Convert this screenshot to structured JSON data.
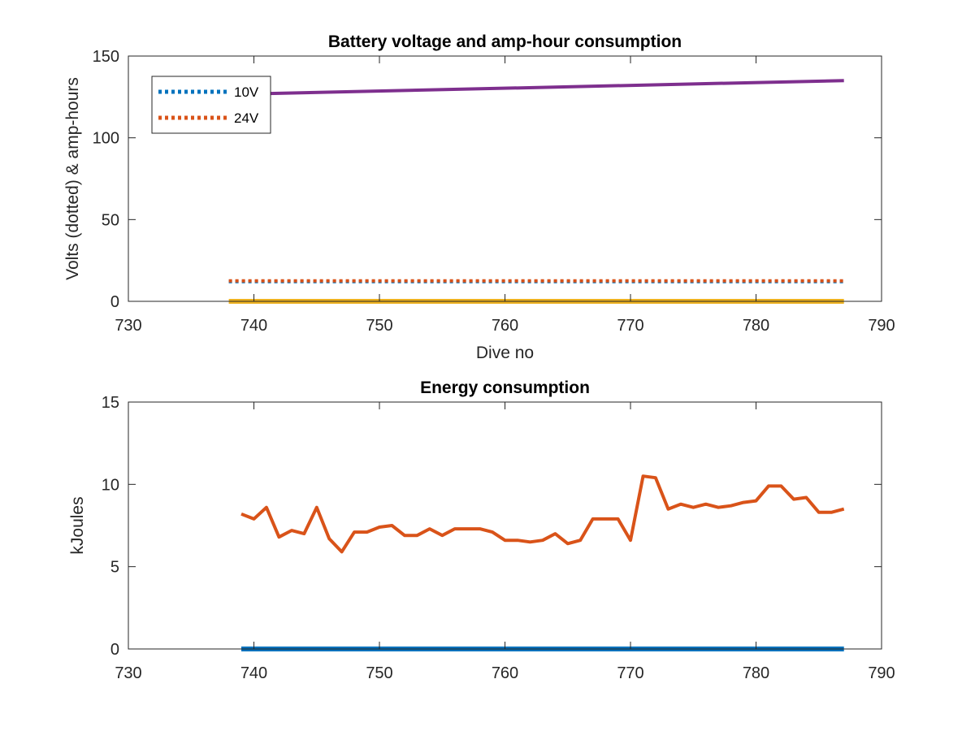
{
  "chart_data": [
    {
      "type": "line",
      "title": "Battery voltage and amp-hour consumption",
      "xlabel": "Dive no",
      "ylabel": "Volts (dotted) & amp-hours",
      "xlim": [
        730,
        790
      ],
      "ylim": [
        0,
        150
      ],
      "xticks": [
        "730",
        "740",
        "750",
        "760",
        "770",
        "780",
        "790"
      ],
      "yticks": [
        "0",
        "50",
        "100",
        "150"
      ],
      "legend": {
        "placement": "top-left",
        "entries": [
          "10V",
          "24V"
        ]
      },
      "grid": false,
      "series": [
        {
          "name": "10V",
          "style": "dotted",
          "color": "#0072BD",
          "x": [
            738,
            787
          ],
          "y": [
            12,
            12
          ]
        },
        {
          "name": "24V",
          "style": "dotted",
          "color": "#D95319",
          "x": [
            738,
            787
          ],
          "y": [
            12.5,
            12.5
          ]
        },
        {
          "style": "solid",
          "color": "#EDB120",
          "x": [
            738,
            787
          ],
          "y": [
            0,
            0
          ]
        },
        {
          "style": "solid",
          "color": "#7E2F8E",
          "x": [
            738,
            787
          ],
          "y": [
            126.5,
            135
          ]
        }
      ]
    },
    {
      "type": "line",
      "title": "Energy consumption",
      "xlabel": "",
      "ylabel": "kJoules",
      "xlim": [
        730,
        790
      ],
      "ylim": [
        0,
        15
      ],
      "xticks": [
        "730",
        "740",
        "750",
        "760",
        "770",
        "780",
        "790"
      ],
      "yticks": [
        "0",
        "5",
        "10",
        "15"
      ],
      "grid": false,
      "series": [
        {
          "style": "solid",
          "color": "#D95319",
          "x": [
            739,
            740,
            741,
            742,
            743,
            744,
            745,
            746,
            747,
            748,
            749,
            750,
            751,
            752,
            753,
            754,
            755,
            756,
            757,
            758,
            759,
            760,
            761,
            762,
            763,
            764,
            765,
            766,
            767,
            768,
            769,
            770,
            771,
            772,
            773,
            774,
            775,
            776,
            777,
            778,
            779,
            780,
            781,
            782,
            783,
            784,
            785,
            786,
            787
          ],
          "y": [
            8.2,
            7.9,
            8.6,
            6.8,
            7.2,
            7.0,
            8.6,
            6.7,
            5.9,
            7.1,
            7.1,
            7.4,
            7.5,
            6.9,
            6.9,
            7.3,
            6.9,
            7.3,
            7.3,
            7.3,
            7.1,
            6.6,
            6.6,
            6.5,
            6.6,
            7.0,
            6.4,
            6.6,
            7.9,
            7.9,
            7.9,
            6.6,
            10.5,
            10.4,
            8.5,
            8.8,
            8.6,
            8.8,
            8.6,
            8.7,
            8.9,
            9.0,
            9.9,
            9.9,
            9.1,
            9.2,
            8.3,
            8.3,
            8.5
          ]
        },
        {
          "style": "solid",
          "color": "#0072BD",
          "x": [
            739,
            787
          ],
          "y": [
            0,
            0
          ]
        }
      ]
    }
  ]
}
